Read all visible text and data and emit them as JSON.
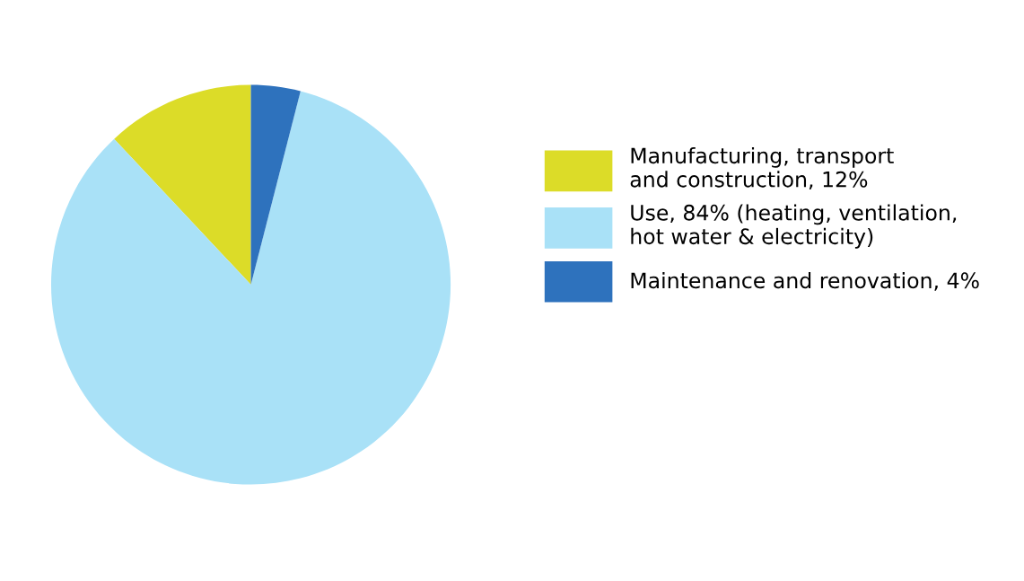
{
  "chart_data": {
    "type": "pie",
    "categories": [
      "Manufacturing, transport\nand construction, 12%",
      "Use, 84% (heating, ventilation,\nhot water & electricity)",
      "Maintenance and renovation, 4%"
    ],
    "values": [
      12,
      84,
      4
    ],
    "colors": [
      "#dcdc28",
      "#a9e1f7",
      "#2e72bd"
    ],
    "legend": "right"
  }
}
